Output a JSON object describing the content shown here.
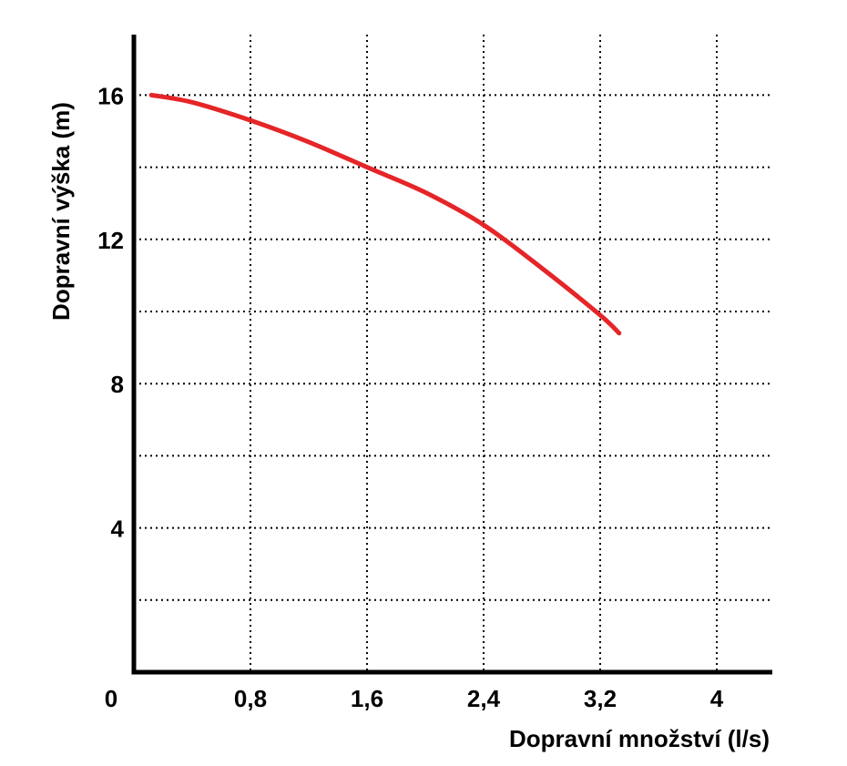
{
  "chart_data": {
    "type": "line",
    "title": "",
    "xlabel": "Dopravní množství (l/s)",
    "ylabel": "Dopravní výška (m)",
    "xlim": [
      0,
      4.4
    ],
    "ylim": [
      0,
      18
    ],
    "x_ticks": [
      0.8,
      1.6,
      2.4,
      3.2,
      4
    ],
    "x_tick_labels": [
      "0,8",
      "1,6",
      "2,4",
      "3,2",
      "4"
    ],
    "y_ticks": [
      4,
      8,
      12,
      16
    ],
    "y_tick_labels": [
      "4",
      "8",
      "12",
      "16"
    ],
    "origin_label": "0",
    "grid": true,
    "grid_x": [
      0.8,
      1.6,
      2.4,
      3.2,
      4
    ],
    "grid_y": [
      2,
      4,
      6,
      8,
      10,
      12,
      14,
      16
    ],
    "series": [
      {
        "color": "#e52528",
        "x": [
          0.12,
          0.4,
          0.8,
          1.2,
          1.6,
          2.0,
          2.4,
          2.8,
          3.2,
          3.33
        ],
        "y": [
          16.0,
          15.8,
          15.3,
          14.7,
          14.0,
          13.3,
          12.4,
          11.2,
          9.9,
          9.4
        ]
      }
    ]
  }
}
